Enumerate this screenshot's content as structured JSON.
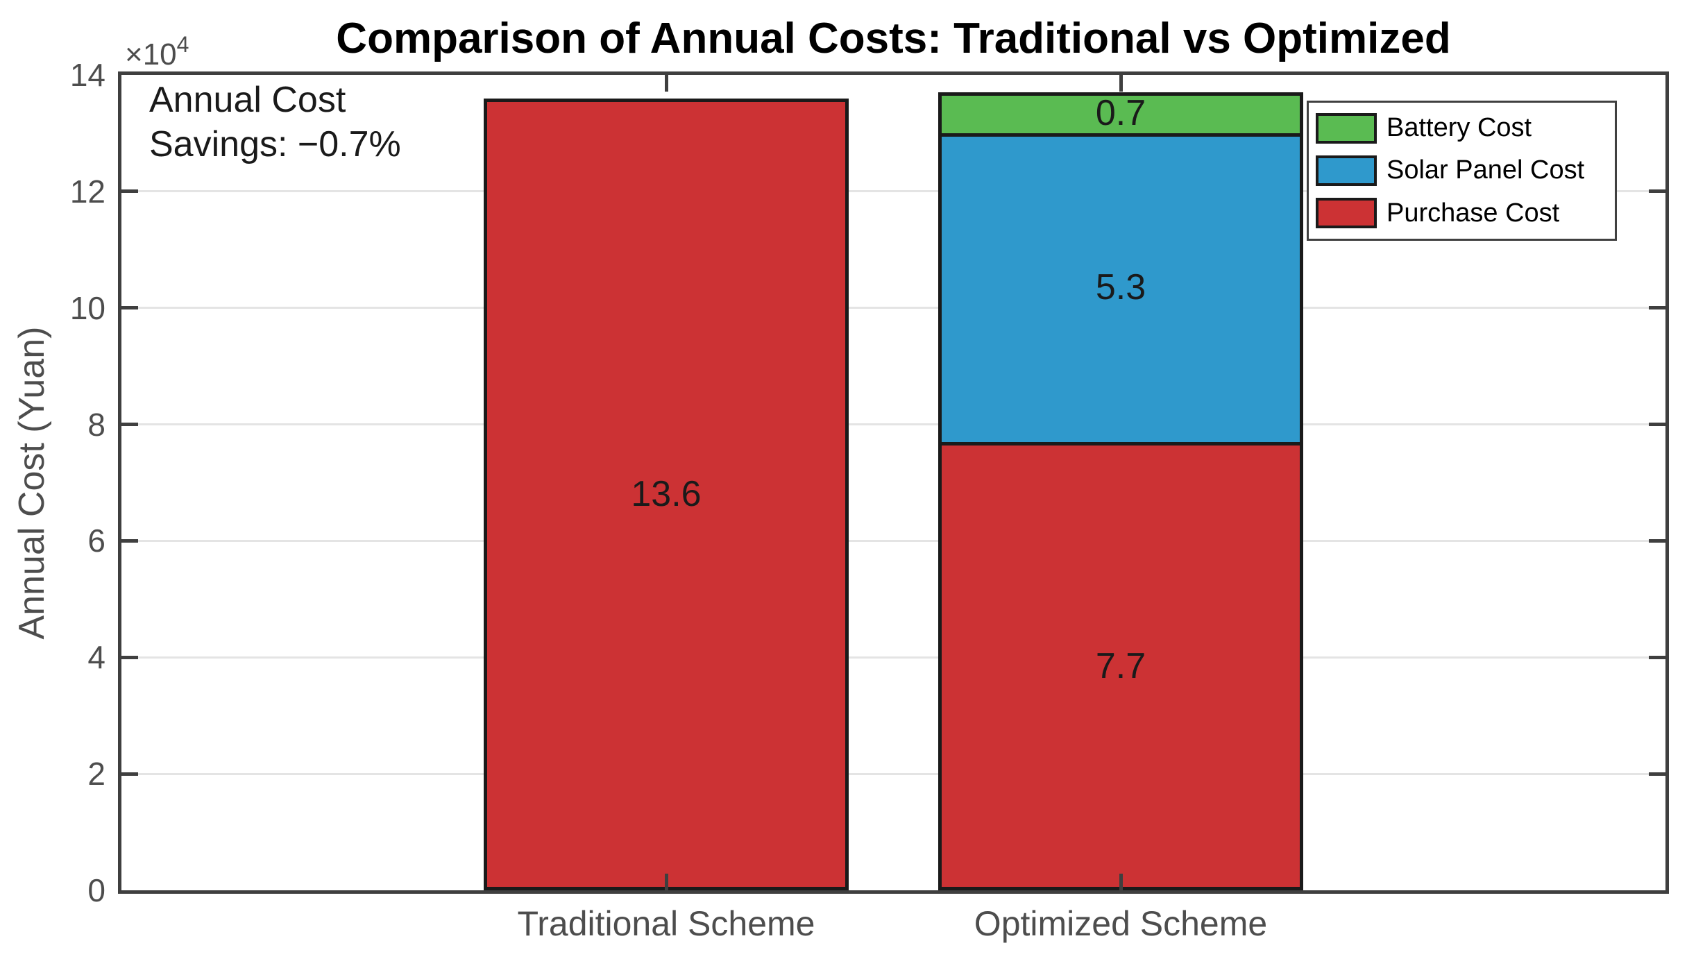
{
  "title": "Comparison of Annual Costs: Traditional vs Optimized",
  "annotation": {
    "line1": "Annual Cost",
    "line2": "Savings: −0.7%"
  },
  "y_axis": {
    "label": "Annual Cost (Yuan)",
    "multiplier_base": "×10",
    "multiplier_exponent": "4",
    "tick_values": [
      0,
      2,
      4,
      6,
      8,
      10,
      12,
      14
    ],
    "max_e4": 14
  },
  "x_axis": {
    "categories": [
      "Traditional Scheme",
      "Optimized Scheme"
    ]
  },
  "legend": {
    "items": [
      {
        "label": "Battery Cost",
        "color": "#5ABB52"
      },
      {
        "label": "Solar Panel Cost",
        "color": "#2F99CC"
      },
      {
        "label": "Purchase Cost",
        "color": "#CC3234"
      }
    ]
  },
  "chart_data": {
    "type": "bar",
    "stacked": true,
    "title": "Comparison of Annual Costs: Traditional vs Optimized",
    "categories": [
      "Traditional Scheme",
      "Optimized Scheme"
    ],
    "series": [
      {
        "name": "Purchase Cost",
        "color": "#CC3234",
        "values": [
          136000,
          77000
        ],
        "labels": [
          "13.6",
          "7.7"
        ]
      },
      {
        "name": "Solar Panel Cost",
        "color": "#2F99CC",
        "values": [
          0,
          53000
        ],
        "labels": [
          "",
          "5.3"
        ]
      },
      {
        "name": "Battery Cost",
        "color": "#5ABB52",
        "values": [
          0,
          7000
        ],
        "labels": [
          "",
          "0.7"
        ]
      }
    ],
    "xlabel": "",
    "ylabel": "Annual Cost (Yuan)",
    "ylim": [
      0,
      140000
    ],
    "y_tick_step": 20000,
    "y_multiplier": 10000,
    "grid": "y-only",
    "legend_position": "upper-right",
    "annotation": "Annual Cost Savings: −0.7%",
    "bar_width_fraction": 0.8
  },
  "colors": {
    "axis": "#3F3F3F",
    "grid": "#E4E4E4",
    "tick_label": "#4D4D4D",
    "bar_edge": "#1A1A1A",
    "background": "#FFFFFF"
  }
}
